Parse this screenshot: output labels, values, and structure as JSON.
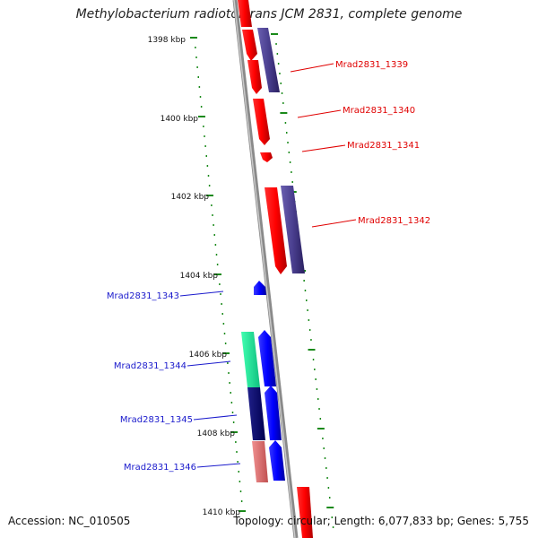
{
  "title": "Methylobacterium radiotolerans JCM 2831, complete genome",
  "footer": {
    "accession": "Accession: NC_010505",
    "summary": "Topology: circular; Length: 6,077,833 bp; Genes: 5,755"
  },
  "ruler": [
    "1398 kbp",
    "1400 kbp",
    "1402 kbp",
    "1404 kbp",
    "1406 kbp",
    "1408 kbp",
    "1410 kbp"
  ],
  "genes": [
    {
      "label": "Mrad2831_1339",
      "color": "#e00000",
      "strand": "forward"
    },
    {
      "label": "Mrad2831_1340",
      "color": "#e00000",
      "strand": "forward"
    },
    {
      "label": "Mrad2831_1341",
      "color": "#e00000",
      "strand": "forward"
    },
    {
      "label": "Mrad2831_1342",
      "color": "#e00000",
      "strand": "forward"
    },
    {
      "label": "Mrad2831_1343",
      "color": "#1a1acc",
      "strand": "reverse"
    },
    {
      "label": "Mrad2831_1344",
      "color": "#1a1acc",
      "strand": "reverse"
    },
    {
      "label": "Mrad2831_1345",
      "color": "#1a1acc",
      "strand": "reverse"
    },
    {
      "label": "Mrad2831_1346",
      "color": "#1a1acc",
      "strand": "reverse"
    }
  ],
  "colors": {
    "forward_gene": "#ff1a1a",
    "reverse_gene": "#1010ff",
    "purple_feature": "#4a3f8f",
    "teal_feature": "#33e6a0",
    "navy_feature": "#101070",
    "pink_feature": "#e88080",
    "tick": "#1a8a1a",
    "backbone": "#8a8a8a"
  }
}
